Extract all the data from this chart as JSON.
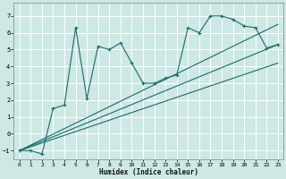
{
  "title": "",
  "xlabel": "Humidex (Indice chaleur)",
  "bg_color": "#cde8e5",
  "grid_color": "#ffffff",
  "line_color": "#1a6b6b",
  "xlim": [
    -0.5,
    23.5
  ],
  "ylim": [
    -1.5,
    7.8
  ],
  "xticks": [
    0,
    1,
    2,
    3,
    4,
    5,
    6,
    7,
    8,
    9,
    10,
    11,
    12,
    13,
    14,
    15,
    16,
    17,
    18,
    19,
    20,
    21,
    22,
    23
  ],
  "yticks": [
    -1,
    0,
    1,
    2,
    3,
    4,
    5,
    6,
    7
  ],
  "main_series": {
    "x": [
      0,
      1,
      2,
      3,
      4,
      5,
      6,
      7,
      8,
      9,
      10,
      11,
      12,
      13,
      14,
      15,
      16,
      17,
      18,
      19,
      20,
      21,
      22,
      23
    ],
    "y": [
      -1,
      -1,
      -1.2,
      1.5,
      1.7,
      6.3,
      2.1,
      5.2,
      5.0,
      5.4,
      4.2,
      3.0,
      3.0,
      3.3,
      3.5,
      6.3,
      6.0,
      7.0,
      7.0,
      6.8,
      6.4,
      6.3,
      5.1,
      5.3
    ]
  },
  "trend_lines": [
    {
      "x0": 0,
      "y0": -1,
      "x1": 23,
      "y1": 6.5
    },
    {
      "x0": 0,
      "y0": -1,
      "x1": 23,
      "y1": 5.3
    },
    {
      "x0": 0,
      "y0": -1,
      "x1": 23,
      "y1": 4.2
    }
  ]
}
